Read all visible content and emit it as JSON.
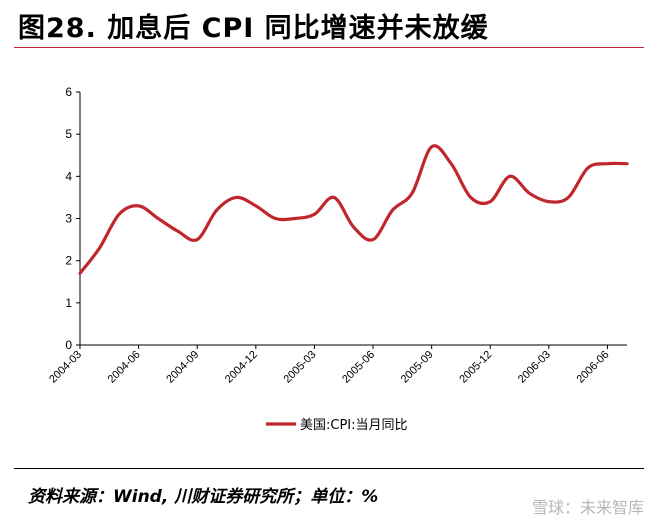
{
  "header": {
    "title": "图28. 加息后 CPI 同比增速并未放缓"
  },
  "footer": {
    "source": "资料来源：Wind, 川财证券研究所；单位：%",
    "watermark": "雪球：未来智库"
  },
  "colors": {
    "accent_rule": "#c0272d",
    "series_line": "#c0272d"
  },
  "chart_data": {
    "type": "line",
    "x_ticks": [
      "2004-03",
      "2004-06",
      "2004-09",
      "2004-12",
      "2005-03",
      "2005-06",
      "2005-09",
      "2005-12",
      "2006-03",
      "2006-06"
    ],
    "ylim": [
      0,
      6
    ],
    "y_ticks": [
      "0",
      "1",
      "2",
      "3",
      "4",
      "5",
      "6"
    ],
    "legend": "bottom-center",
    "grid": false,
    "series": [
      {
        "name": "美国:CPI:当月同比",
        "x": [
          "2004-03",
          "2004-04",
          "2004-05",
          "2004-06",
          "2004-07",
          "2004-08",
          "2004-09",
          "2004-10",
          "2004-11",
          "2004-12",
          "2005-01",
          "2005-02",
          "2005-03",
          "2005-04",
          "2005-05",
          "2005-06",
          "2005-07",
          "2005-08",
          "2005-09",
          "2005-10",
          "2005-11",
          "2005-12",
          "2006-01",
          "2006-02",
          "2006-03",
          "2006-04",
          "2006-05",
          "2006-06",
          "2006-07"
        ],
        "values": [
          1.7,
          2.3,
          3.1,
          3.3,
          3.0,
          2.7,
          2.5,
          3.2,
          3.5,
          3.3,
          3.0,
          3.0,
          3.1,
          3.5,
          2.8,
          2.5,
          3.2,
          3.6,
          4.7,
          4.3,
          3.5,
          3.4,
          4.0,
          3.6,
          3.4,
          3.5,
          4.2,
          4.3,
          4.3
        ]
      }
    ]
  }
}
